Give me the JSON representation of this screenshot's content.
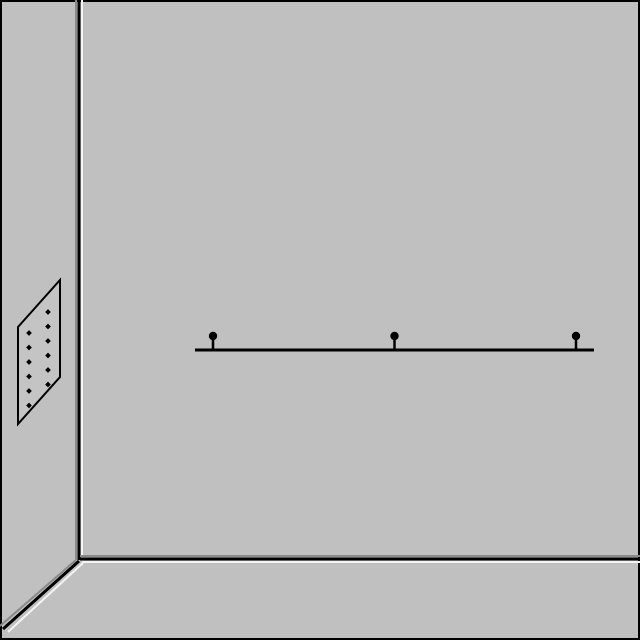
{
  "scene": {
    "kind": "room-corner-view",
    "wall_color": "#c0c0c0",
    "line_color": "#000000",
    "highlight_color": "#f4f4f4",
    "shade_color": "#8a8a8a"
  },
  "objects": {
    "coat_rack": {
      "hook_count": 3,
      "icon": "coat-hook-icon"
    },
    "wall_vent": {
      "hole_rows": 6,
      "hole_columns": 2,
      "icon": "vent-icon"
    }
  }
}
